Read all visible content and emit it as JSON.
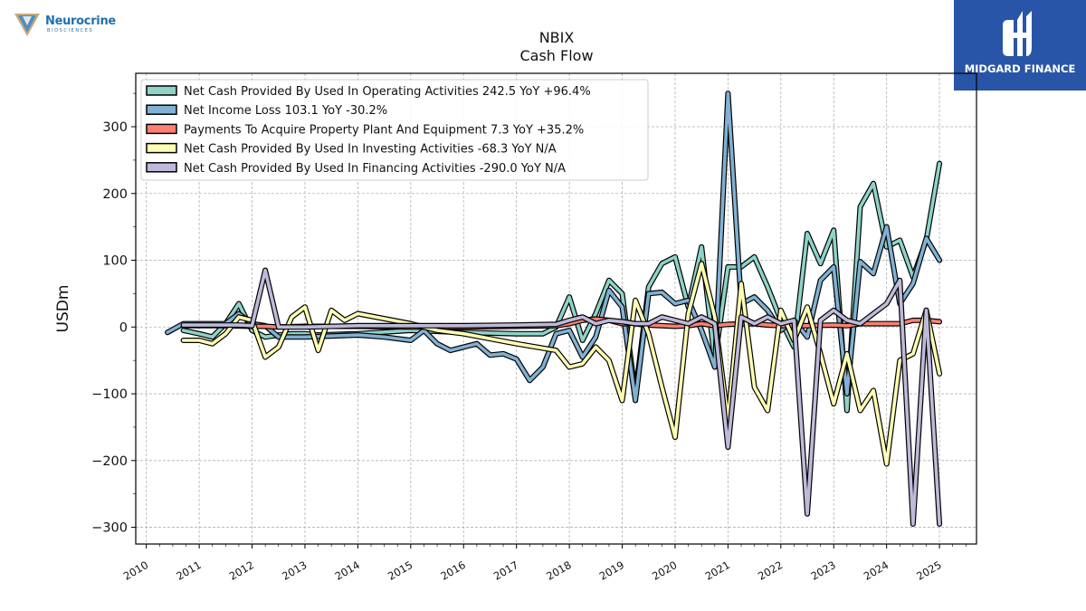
{
  "header": {
    "title": "NBIX",
    "subtitle": "Cash Flow"
  },
  "logos": {
    "left_brand": "Neurocrine",
    "left_sub": "BIOSCIENCES",
    "right_brand": "MIDGARD FINANCE"
  },
  "colors": {
    "operating": "#8dd3c7",
    "net_income": "#80b1d3",
    "capex": "#fb8072",
    "investing": "#ffffb3",
    "financing": "#bebada",
    "right_logo_bg": "#2855a8"
  },
  "chart_data": {
    "type": "line",
    "title": "NBIX",
    "subtitle": "Cash Flow",
    "xlabel": "",
    "ylabel": "USDm",
    "xlim": [
      2009.8,
      2025.7
    ],
    "ylim": [
      -325,
      380
    ],
    "x_ticks": [
      "2010",
      "2011",
      "2012",
      "2013",
      "2014",
      "2015",
      "2016",
      "2017",
      "2018",
      "2019",
      "2020",
      "2021",
      "2022",
      "2023",
      "2024",
      "2025"
    ],
    "y_ticks": [
      -300,
      -200,
      -100,
      0,
      100,
      200,
      300
    ],
    "y_tick_labels": [
      "−300",
      "−200",
      "−100",
      "0",
      "100",
      "200",
      "300"
    ],
    "grid": true,
    "legend_position": "top-left",
    "series": [
      {
        "name": "Net Cash Provided By Used In Operating Activities  242.5 YoY +96.4%",
        "color": "#8dd3c7",
        "points": [
          [
            2010.7,
            -5
          ],
          [
            2011,
            -10
          ],
          [
            2011.25,
            -15
          ],
          [
            2011.5,
            5
          ],
          [
            2011.75,
            35
          ],
          [
            2012,
            -5
          ],
          [
            2012.25,
            -15
          ],
          [
            2012.5,
            -12
          ],
          [
            2012.75,
            -10
          ],
          [
            2013,
            -10
          ],
          [
            2013.25,
            -12
          ],
          [
            2014,
            -10
          ],
          [
            2015,
            -5
          ],
          [
            2016,
            -8
          ],
          [
            2017,
            -10
          ],
          [
            2017.5,
            -10
          ],
          [
            2017.75,
            0
          ],
          [
            2018,
            45
          ],
          [
            2018.25,
            -20
          ],
          [
            2018.5,
            20
          ],
          [
            2018.75,
            70
          ],
          [
            2019,
            50
          ],
          [
            2019.25,
            -100
          ],
          [
            2019.5,
            60
          ],
          [
            2019.75,
            95
          ],
          [
            2020,
            105
          ],
          [
            2020.25,
            30
          ],
          [
            2020.5,
            120
          ],
          [
            2020.75,
            -50
          ],
          [
            2021,
            90
          ],
          [
            2021.25,
            90
          ],
          [
            2021.5,
            105
          ],
          [
            2021.75,
            60
          ],
          [
            2022,
            10
          ],
          [
            2022.25,
            -30
          ],
          [
            2022.5,
            140
          ],
          [
            2022.75,
            95
          ],
          [
            2023,
            145
          ],
          [
            2023.25,
            -125
          ],
          [
            2023.5,
            180
          ],
          [
            2023.75,
            215
          ],
          [
            2024,
            120
          ],
          [
            2024.25,
            130
          ],
          [
            2024.5,
            75
          ],
          [
            2024.75,
            130
          ],
          [
            2025,
            245
          ]
        ]
      },
      {
        "name": "Net Income Loss  103.1 YoY -30.2%",
        "color": "#80b1d3",
        "points": [
          [
            2010.4,
            -8
          ],
          [
            2010.7,
            5
          ],
          [
            2011,
            5
          ],
          [
            2011.25,
            5
          ],
          [
            2011.5,
            5
          ],
          [
            2011.75,
            20
          ],
          [
            2012,
            5
          ],
          [
            2012.25,
            2
          ],
          [
            2012.5,
            -15
          ],
          [
            2013,
            -15
          ],
          [
            2014,
            -12
          ],
          [
            2014.5,
            -15
          ],
          [
            2015,
            -20
          ],
          [
            2015.25,
            -5
          ],
          [
            2015.5,
            -25
          ],
          [
            2015.75,
            -35
          ],
          [
            2016,
            -30
          ],
          [
            2016.25,
            -25
          ],
          [
            2016.5,
            -42
          ],
          [
            2016.75,
            -40
          ],
          [
            2017,
            -48
          ],
          [
            2017.25,
            -80
          ],
          [
            2017.5,
            -60
          ],
          [
            2017.75,
            -10
          ],
          [
            2018,
            -5
          ],
          [
            2018.25,
            -45
          ],
          [
            2018.5,
            -15
          ],
          [
            2018.75,
            55
          ],
          [
            2019,
            30
          ],
          [
            2019.25,
            -110
          ],
          [
            2019.5,
            50
          ],
          [
            2019.75,
            52
          ],
          [
            2020,
            35
          ],
          [
            2020.25,
            40
          ],
          [
            2020.5,
            -5
          ],
          [
            2020.75,
            -60
          ],
          [
            2021,
            350
          ],
          [
            2021.25,
            35
          ],
          [
            2021.5,
            45
          ],
          [
            2021.75,
            25
          ],
          [
            2022,
            -5
          ],
          [
            2022.25,
            10
          ],
          [
            2022.5,
            -15
          ],
          [
            2022.75,
            70
          ],
          [
            2023,
            90
          ],
          [
            2023.25,
            -100
          ],
          [
            2023.5,
            98
          ],
          [
            2023.75,
            80
          ],
          [
            2024,
            150
          ],
          [
            2024.25,
            35
          ],
          [
            2024.5,
            65
          ],
          [
            2024.75,
            133
          ],
          [
            2025,
            100
          ]
        ]
      },
      {
        "name": "Payments To Acquire Property Plant And Equipment  7.3 YoY +35.2%",
        "color": "#fb8072",
        "points": [
          [
            2010.7,
            2
          ],
          [
            2011,
            2
          ],
          [
            2011.5,
            2
          ],
          [
            2012,
            1
          ],
          [
            2012.25,
            1
          ],
          [
            2012.5,
            0
          ],
          [
            2013,
            1
          ],
          [
            2014,
            1
          ],
          [
            2015,
            0
          ],
          [
            2016,
            0
          ],
          [
            2017,
            1
          ],
          [
            2017.75,
            2
          ],
          [
            2018,
            5
          ],
          [
            2018.25,
            10
          ],
          [
            2018.5,
            12
          ],
          [
            2018.75,
            10
          ],
          [
            2019,
            5
          ],
          [
            2019.25,
            5
          ],
          [
            2019.5,
            3
          ],
          [
            2020,
            1
          ],
          [
            2020.25,
            2
          ],
          [
            2020.5,
            5
          ],
          [
            2020.75,
            2
          ],
          [
            2021,
            4
          ],
          [
            2021.5,
            5
          ],
          [
            2021.75,
            3
          ],
          [
            2022,
            2
          ],
          [
            2022.5,
            2
          ],
          [
            2023,
            3
          ],
          [
            2023.25,
            2
          ],
          [
            2023.5,
            5
          ],
          [
            2024,
            5
          ],
          [
            2024.25,
            5
          ],
          [
            2024.5,
            10
          ],
          [
            2024.75,
            10
          ],
          [
            2025,
            8
          ]
        ]
      },
      {
        "name": "Net Cash Provided By Used In Investing Activities  -68.3 YoY N/A",
        "color": "#ffffb3",
        "points": [
          [
            2010.7,
            -20
          ],
          [
            2011,
            -20
          ],
          [
            2011.25,
            -25
          ],
          [
            2011.5,
            -10
          ],
          [
            2011.75,
            15
          ],
          [
            2012,
            10
          ],
          [
            2012.25,
            -45
          ],
          [
            2012.5,
            -30
          ],
          [
            2012.75,
            15
          ],
          [
            2013,
            30
          ],
          [
            2013.25,
            -35
          ],
          [
            2013.5,
            25
          ],
          [
            2013.75,
            10
          ],
          [
            2014,
            20
          ],
          [
            2015,
            5
          ],
          [
            2015.5,
            -5
          ],
          [
            2016,
            -10
          ],
          [
            2017,
            -25
          ],
          [
            2017.75,
            -35
          ],
          [
            2018,
            -60
          ],
          [
            2018.25,
            -55
          ],
          [
            2018.5,
            -30
          ],
          [
            2018.75,
            -50
          ],
          [
            2019,
            -110
          ],
          [
            2019.25,
            40
          ],
          [
            2019.5,
            -10
          ],
          [
            2019.75,
            -90
          ],
          [
            2020,
            -165
          ],
          [
            2020.25,
            20
          ],
          [
            2020.5,
            95
          ],
          [
            2020.75,
            15
          ],
          [
            2021,
            -140
          ],
          [
            2021.25,
            65
          ],
          [
            2021.5,
            -90
          ],
          [
            2021.75,
            -125
          ],
          [
            2022,
            25
          ],
          [
            2022.25,
            -20
          ],
          [
            2022.5,
            30
          ],
          [
            2022.75,
            -40
          ],
          [
            2023,
            -115
          ],
          [
            2023.25,
            -40
          ],
          [
            2023.5,
            -125
          ],
          [
            2023.75,
            -95
          ],
          [
            2024,
            -205
          ],
          [
            2024.25,
            -50
          ],
          [
            2024.5,
            -40
          ],
          [
            2024.75,
            25
          ],
          [
            2025,
            -70
          ]
        ]
      },
      {
        "name": "Net Cash Provided By Used In Financing Activities  -290.0 YoY N/A",
        "color": "#bebada",
        "points": [
          [
            2010.7,
            3
          ],
          [
            2011,
            3
          ],
          [
            2011.5,
            3
          ],
          [
            2011.75,
            3
          ],
          [
            2012,
            2
          ],
          [
            2012.25,
            85
          ],
          [
            2012.5,
            0
          ],
          [
            2013,
            0
          ],
          [
            2014,
            2
          ],
          [
            2015,
            2
          ],
          [
            2016,
            2
          ],
          [
            2017,
            3
          ],
          [
            2017.75,
            4
          ],
          [
            2018,
            10
          ],
          [
            2018.25,
            15
          ],
          [
            2018.5,
            5
          ],
          [
            2018.75,
            10
          ],
          [
            2019,
            8
          ],
          [
            2019.25,
            5
          ],
          [
            2019.5,
            5
          ],
          [
            2019.75,
            15
          ],
          [
            2020,
            10
          ],
          [
            2020.25,
            5
          ],
          [
            2020.5,
            15
          ],
          [
            2020.75,
            5
          ],
          [
            2021,
            -180
          ],
          [
            2021.25,
            15
          ],
          [
            2021.5,
            5
          ],
          [
            2021.75,
            15
          ],
          [
            2022,
            5
          ],
          [
            2022.25,
            10
          ],
          [
            2022.5,
            -280
          ],
          [
            2022.75,
            10
          ],
          [
            2023,
            25
          ],
          [
            2023.25,
            10
          ],
          [
            2023.5,
            5
          ],
          [
            2023.75,
            20
          ],
          [
            2024,
            35
          ],
          [
            2024.25,
            70
          ],
          [
            2024.5,
            -295
          ],
          [
            2024.75,
            25
          ],
          [
            2025,
            -295
          ]
        ]
      }
    ]
  }
}
